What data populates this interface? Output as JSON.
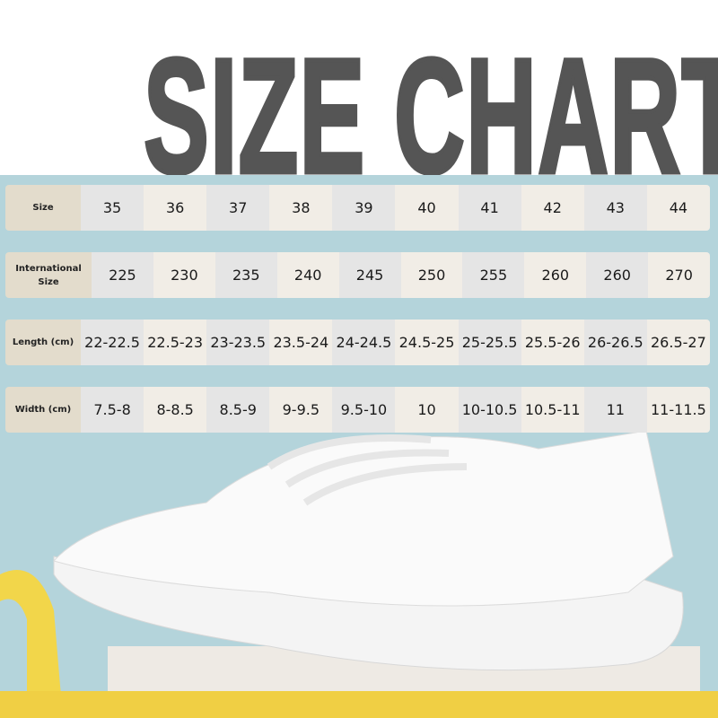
{
  "title": "SIZE CHART",
  "colors": {
    "title": "#555555",
    "background": "#b4d4db",
    "label_cell": "#e3dccc",
    "cell_gray": "#e5e5e5",
    "cell_cream": "#f1ede6"
  },
  "table": [
    {
      "label": "Size",
      "values": [
        "35",
        "36",
        "37",
        "38",
        "39",
        "40",
        "41",
        "42",
        "43",
        "44"
      ]
    },
    {
      "label": "International Size",
      "values": [
        "225",
        "230",
        "235",
        "240",
        "245",
        "250",
        "255",
        "260",
        "260",
        "270"
      ]
    },
    {
      "label": "Length (cm)",
      "values": [
        "22-22.5",
        "22.5-23",
        "23-23.5",
        "23.5-24",
        "24-24.5",
        "24.5-25",
        "25-25.5",
        "25.5-26",
        "26-26.5",
        "26.5-27"
      ]
    },
    {
      "label": "Width (cm)",
      "values": [
        "7.5-8",
        "8-8.5",
        "8.5-9",
        "9-9.5",
        "9.5-10",
        "10",
        "10-10.5",
        "10.5-11",
        "11",
        "11-11.5"
      ]
    }
  ]
}
